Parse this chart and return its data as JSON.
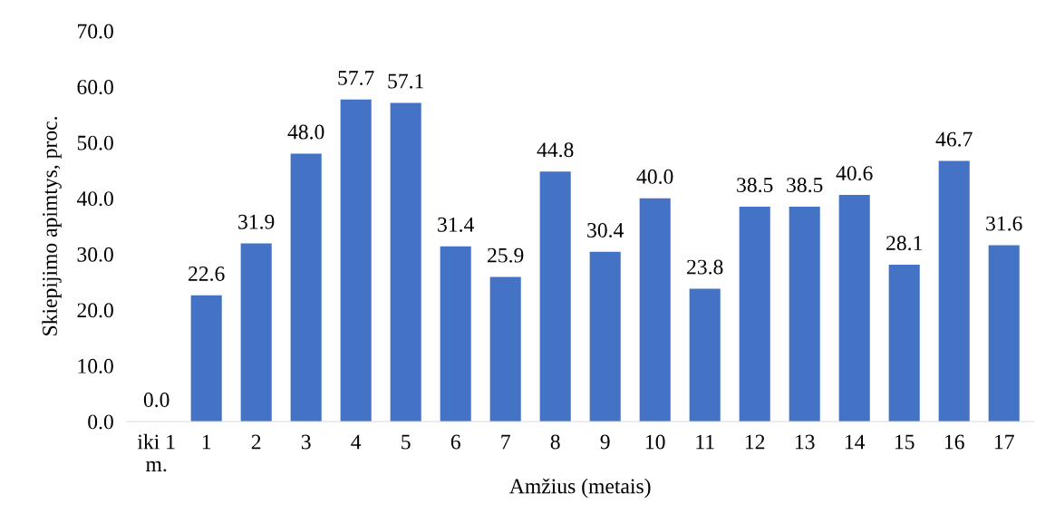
{
  "chart_data": {
    "type": "bar",
    "xlabel": "Amžius (metais)",
    "ylabel": "Skiepijimo apimtys, proc.",
    "categories": [
      "iki 1 m.",
      "1",
      "2",
      "3",
      "4",
      "5",
      "6",
      "7",
      "8",
      "9",
      "10",
      "11",
      "12",
      "13",
      "14",
      "15",
      "16",
      "17"
    ],
    "values": [
      0.0,
      22.6,
      31.9,
      48.0,
      57.7,
      57.1,
      31.4,
      25.9,
      44.8,
      30.4,
      40.0,
      23.8,
      38.5,
      38.5,
      40.6,
      28.1,
      46.7,
      31.6
    ],
    "value_labels": [
      "0.0",
      "22.6",
      "31.9",
      "48.0",
      "57.7",
      "57.1",
      "31.4",
      "25.9",
      "44.8",
      "30.4",
      "40.0",
      "23.8",
      "38.5",
      "38.5",
      "40.6",
      "28.1",
      "46.7",
      "31.6"
    ],
    "color": "#4472c4",
    "ylim": [
      0,
      70
    ],
    "yticks": [
      {
        "value": 0,
        "label": "0.0"
      },
      {
        "value": 10,
        "label": "10.0"
      },
      {
        "value": 20,
        "label": "20.0"
      },
      {
        "value": 30,
        "label": "30.0"
      },
      {
        "value": 40,
        "label": "40.0"
      },
      {
        "value": 50,
        "label": "50.0"
      },
      {
        "value": 60,
        "label": "60.0"
      },
      {
        "value": 70,
        "label": "70.0"
      }
    ],
    "grid": false,
    "legend": false
  }
}
